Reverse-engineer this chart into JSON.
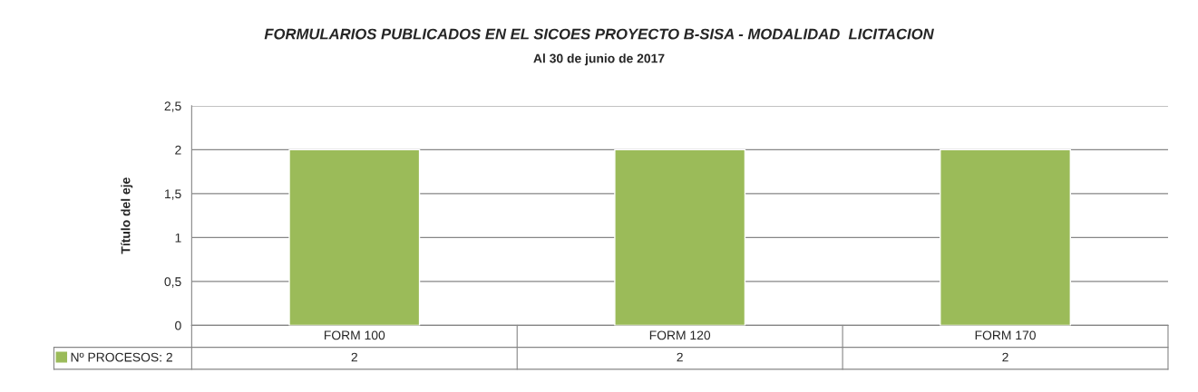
{
  "chart_data": {
    "type": "bar",
    "title": "FORMULARIOS PUBLICADOS EN EL SICOES PROYECTO B-SISA - MODALIDAD  LICITACION",
    "subtitle": "Al 30 de junio de 2017",
    "ylabel": "Título del eje",
    "categories": [
      "FORM 100",
      "FORM 120",
      "FORM 170"
    ],
    "series": [
      {
        "name": "Nº PROCESOS: 2",
        "color": "#9bbb59",
        "values": [
          2,
          2,
          2
        ]
      }
    ],
    "ylim": [
      0,
      2.5
    ],
    "yticks": [
      0,
      {
        "value": 0.5,
        "label": "0,5"
      },
      1,
      {
        "value": 1.5,
        "label": "1,5"
      },
      2,
      {
        "value": 2.5,
        "label": "2,5"
      }
    ],
    "grid": "y",
    "legend": "bottom",
    "data_labels": true
  }
}
